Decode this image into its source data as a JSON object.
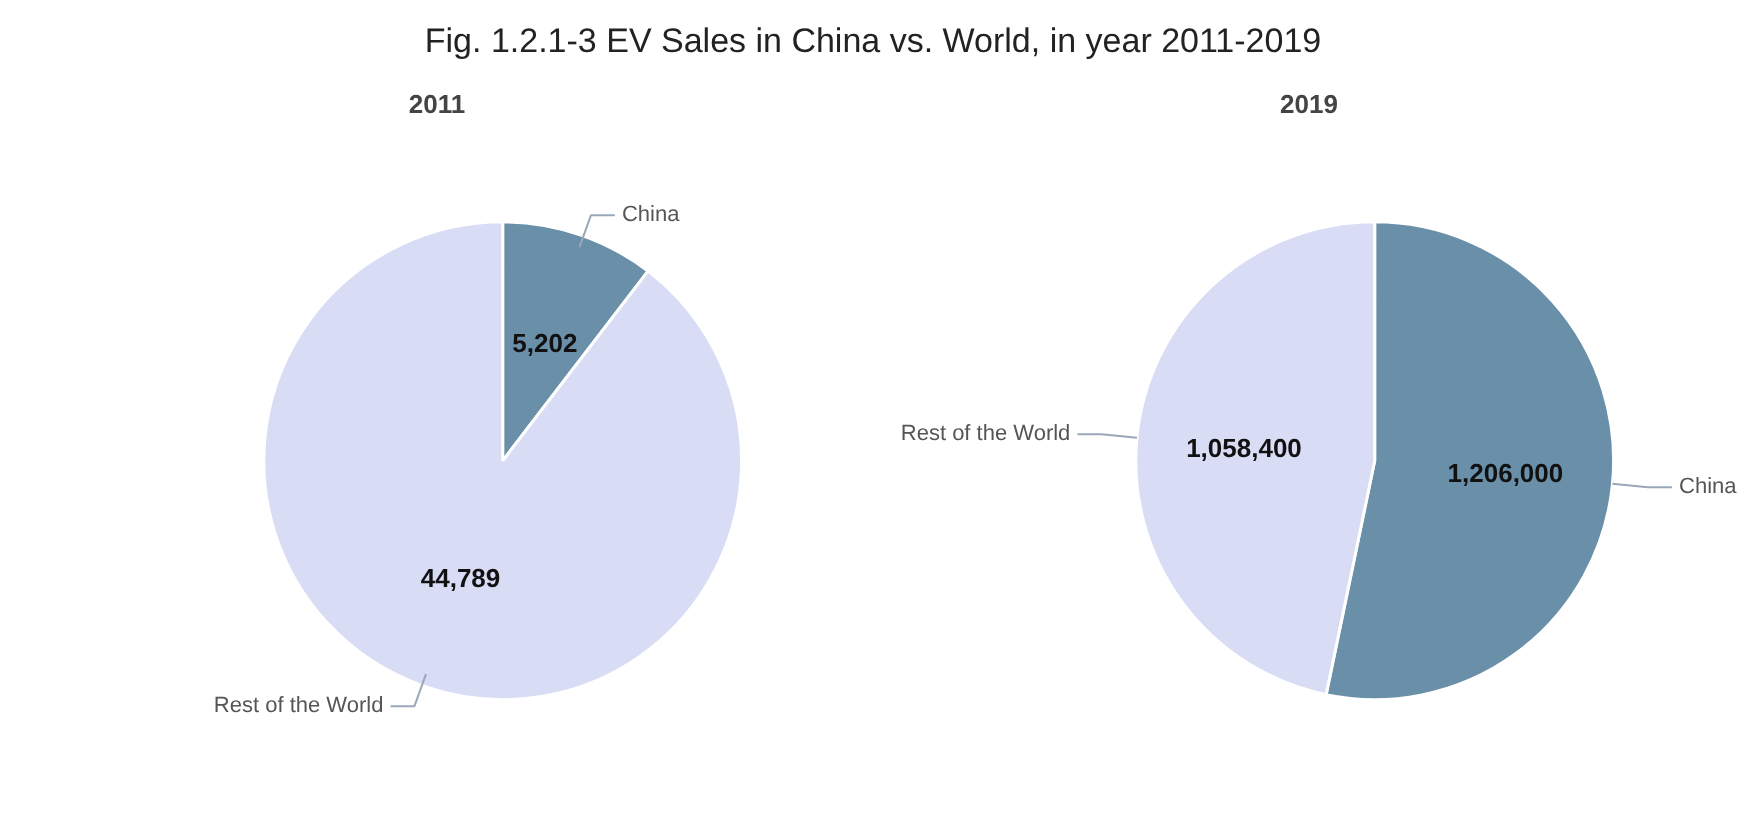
{
  "chart_data": [
    {
      "type": "other",
      "title": "Fig. 1.2.1-3 EV Sales in China vs. World, in year 2011-2019"
    },
    {
      "type": "pie",
      "title": "2011",
      "categories": [
        "China",
        "Rest of the World"
      ],
      "values": [
        5202,
        44789
      ],
      "colors": [
        "#6a8fa8",
        "#d9dcf5"
      ],
      "value_labels": [
        "5,202",
        "44,789"
      ]
    },
    {
      "type": "pie",
      "title": "2019",
      "categories": [
        "China",
        "Rest of the World"
      ],
      "values": [
        1206000,
        1058400
      ],
      "colors": [
        "#6a8fa8",
        "#d9dcf5"
      ],
      "value_labels": [
        "1,206,000",
        "1,058,400"
      ]
    }
  ]
}
